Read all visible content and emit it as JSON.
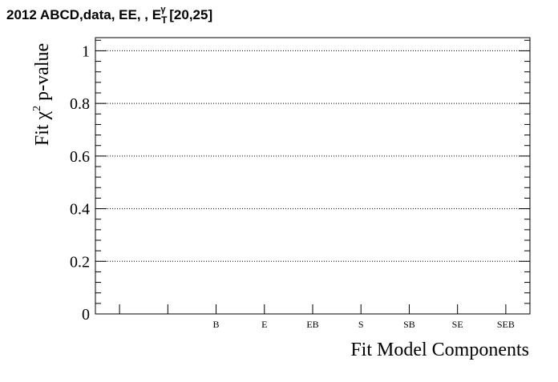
{
  "page": {
    "title_main": "2012 ABCD,data, EE, , E",
    "title_sub": "T",
    "title_sup": "γ",
    "title_range": " [20,25]"
  },
  "chart_data": {
    "type": "scatter",
    "title": "2012 ABCD,data, EE, , E_T^γ [20,25]",
    "xlabel": "Fit Model Components",
    "ylabel_parts": [
      "Fit χ",
      "2",
      " p-value"
    ],
    "categories": [
      "",
      "",
      "B",
      "E",
      "EB",
      "S",
      "SB",
      "SE",
      "SEB"
    ],
    "series": [],
    "ylim": [
      0,
      1.05
    ],
    "y_ticks": [
      0,
      0.2,
      0.4,
      0.6,
      0.8,
      1
    ],
    "y_tick_labels": [
      "0",
      "0.2",
      "0.4",
      "0.6",
      "0.8",
      "1"
    ],
    "y_minor_step": 0.04,
    "grid": {
      "horizontal": true,
      "style": "dotted"
    }
  }
}
